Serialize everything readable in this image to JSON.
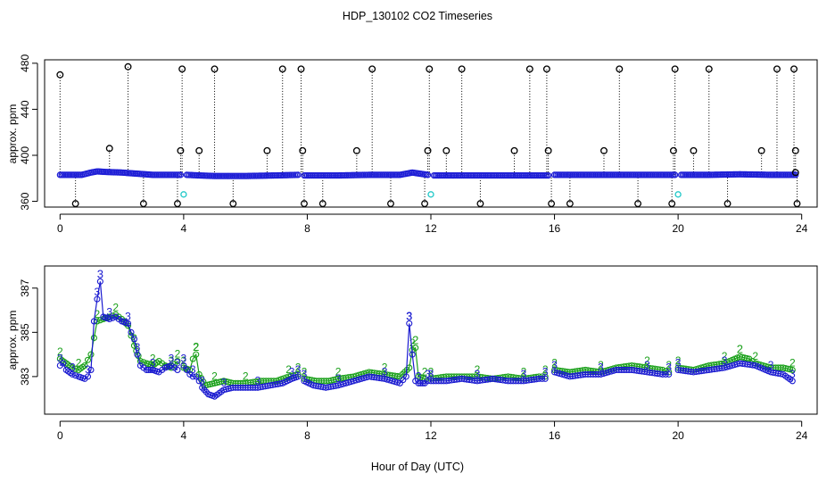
{
  "title": "HDP_130102  CO2 Timeseries",
  "xlabel": "Hour of Day (UTC)",
  "chart_data": [
    {
      "type": "scatter",
      "panel": "top",
      "ylabel": "approx. ppm",
      "xlim": [
        -0.5,
        24.5
      ],
      "ylim": [
        355,
        483
      ],
      "x_ticks": [
        0,
        4,
        8,
        12,
        16,
        20,
        24
      ],
      "y_ticks": [
        360,
        400,
        440,
        480
      ],
      "baseline_series": {
        "color": "#1f1fd6",
        "segments": [
          {
            "x": [
              0.0,
              0.7,
              1.0,
              1.2,
              1.5,
              2.0,
              2.5,
              3.0,
              3.5,
              3.9
            ],
            "y": [
              383,
              383,
              385,
              386,
              385.5,
              385,
              384,
              383,
              383,
              383
            ]
          },
          {
            "x": [
              4.1,
              4.5,
              5.0,
              6.0,
              7.0,
              7.7
            ],
            "y": [
              383,
              382.5,
              382,
              382,
              382.5,
              383
            ]
          },
          {
            "x": [
              7.9,
              9.0,
              10.0,
              11.0,
              11.4,
              11.9
            ],
            "y": [
              382.5,
              382.5,
              383,
              383,
              385,
              383
            ]
          },
          {
            "x": [
              12.1,
              13.0,
              14.0,
              15.0,
              15.8
            ],
            "y": [
              382.5,
              382.5,
              382.5,
              382.5,
              382.5
            ]
          },
          {
            "x": [
              16.0,
              17.0,
              18.0,
              19.0,
              19.9
            ],
            "y": [
              383,
              383,
              383,
              383,
              383
            ]
          },
          {
            "x": [
              20.1,
              21.0,
              22.0,
              23.0,
              23.8
            ],
            "y": [
              383,
              383,
              383.5,
              383,
              383
            ]
          }
        ]
      },
      "spikes": {
        "color": "#000000",
        "points": [
          {
            "x": 0.0,
            "y": 470
          },
          {
            "x": 0.5,
            "y": 358
          },
          {
            "x": 1.6,
            "y": 406
          },
          {
            "x": 2.2,
            "y": 477
          },
          {
            "x": 2.7,
            "y": 358
          },
          {
            "x": 3.8,
            "y": 358
          },
          {
            "x": 3.9,
            "y": 404
          },
          {
            "x": 3.95,
            "y": 475
          },
          {
            "x": 4.5,
            "y": 404
          },
          {
            "x": 5.0,
            "y": 475
          },
          {
            "x": 5.6,
            "y": 358
          },
          {
            "x": 6.7,
            "y": 404
          },
          {
            "x": 7.2,
            "y": 475
          },
          {
            "x": 7.8,
            "y": 475
          },
          {
            "x": 7.85,
            "y": 404
          },
          {
            "x": 7.9,
            "y": 358
          },
          {
            "x": 8.5,
            "y": 358
          },
          {
            "x": 9.6,
            "y": 404
          },
          {
            "x": 10.1,
            "y": 475
          },
          {
            "x": 10.7,
            "y": 358
          },
          {
            "x": 11.8,
            "y": 358
          },
          {
            "x": 11.9,
            "y": 404
          },
          {
            "x": 11.95,
            "y": 475
          },
          {
            "x": 12.5,
            "y": 404
          },
          {
            "x": 13.0,
            "y": 475
          },
          {
            "x": 13.6,
            "y": 358
          },
          {
            "x": 14.7,
            "y": 404
          },
          {
            "x": 15.2,
            "y": 475
          },
          {
            "x": 15.75,
            "y": 475
          },
          {
            "x": 15.8,
            "y": 404
          },
          {
            "x": 15.9,
            "y": 358
          },
          {
            "x": 16.5,
            "y": 358
          },
          {
            "x": 17.6,
            "y": 404
          },
          {
            "x": 18.1,
            "y": 475
          },
          {
            "x": 18.7,
            "y": 358
          },
          {
            "x": 19.8,
            "y": 358
          },
          {
            "x": 19.85,
            "y": 404
          },
          {
            "x": 19.9,
            "y": 475
          },
          {
            "x": 20.5,
            "y": 404
          },
          {
            "x": 21.0,
            "y": 475
          },
          {
            "x": 21.6,
            "y": 358
          },
          {
            "x": 22.7,
            "y": 404
          },
          {
            "x": 23.2,
            "y": 475
          },
          {
            "x": 23.75,
            "y": 475
          },
          {
            "x": 23.8,
            "y": 404
          },
          {
            "x": 23.85,
            "y": 358
          },
          {
            "x": 23.8,
            "y": 385
          }
        ]
      },
      "cyan_points": {
        "color": "#20c8c8",
        "points": [
          {
            "x": 4.0,
            "y": 366
          },
          {
            "x": 12.0,
            "y": 366
          },
          {
            "x": 20.0,
            "y": 366
          }
        ]
      }
    },
    {
      "type": "line",
      "panel": "bottom",
      "ylabel": "approx. ppm",
      "xlim": [
        -0.5,
        24.5
      ],
      "ylim": [
        381.3,
        388.0
      ],
      "x_ticks": [
        0,
        4,
        8,
        12,
        16,
        20,
        24
      ],
      "y_ticks": [
        383,
        385,
        387
      ],
      "series": [
        {
          "marker": "3",
          "color": "#1a1ad0",
          "segments": [
            {
              "x": [
                0.0,
                0.1,
                0.2,
                0.4,
                0.6,
                0.8,
                0.9,
                1.0,
                1.1,
                1.2,
                1.3,
                1.4,
                1.6,
                1.8,
                2.0,
                2.2,
                2.3,
                2.4,
                2.5,
                2.6,
                2.8,
                3.0,
                3.2,
                3.4,
                3.6,
                3.8
              ],
              "y": [
                383.5,
                383.6,
                383.3,
                383.1,
                383.0,
                382.9,
                383.0,
                383.3,
                385.5,
                386.5,
                387.3,
                385.7,
                385.6,
                385.7,
                385.5,
                385.4,
                385.0,
                384.7,
                384.0,
                383.5,
                383.3,
                383.3,
                383.2,
                383.4,
                383.5,
                383.3
              ]
            },
            {
              "x": [
                4.0,
                4.1,
                4.2,
                4.3,
                4.4,
                4.5,
                4.6,
                4.8,
                5.0,
                5.3,
                5.6,
                6.0,
                6.4,
                6.8,
                7.2,
                7.5,
                7.7
              ],
              "y": [
                383.5,
                383.3,
                383.1,
                383.0,
                383.0,
                382.8,
                382.5,
                382.2,
                382.1,
                382.4,
                382.5,
                382.5,
                382.5,
                382.6,
                382.7,
                382.9,
                383.0
              ]
            },
            {
              "x": [
                7.9,
                8.2,
                8.6,
                9.0,
                9.5,
                10.0,
                10.5,
                11.0,
                11.2,
                11.3,
                11.4,
                11.5,
                11.6,
                11.8,
                11.9
              ],
              "y": [
                382.8,
                382.6,
                382.5,
                382.6,
                382.8,
                383.0,
                382.9,
                382.7,
                383.0,
                385.4,
                384.0,
                382.8,
                382.7,
                382.7,
                382.8
              ]
            },
            {
              "x": [
                12.0,
                12.5,
                13.0,
                13.5,
                14.0,
                14.5,
                15.0,
                15.5,
                15.7
              ],
              "y": [
                382.8,
                382.8,
                382.9,
                382.8,
                382.9,
                382.8,
                382.8,
                382.9,
                382.9
              ]
            },
            {
              "x": [
                16.0,
                16.5,
                17.0,
                17.5,
                18.0,
                18.5,
                19.0,
                19.5,
                19.7
              ],
              "y": [
                383.2,
                383.0,
                383.1,
                383.1,
                383.3,
                383.3,
                383.2,
                383.1,
                383.1
              ]
            },
            {
              "x": [
                20.0,
                20.5,
                21.0,
                21.5,
                22.0,
                22.5,
                23.0,
                23.4,
                23.7
              ],
              "y": [
                383.3,
                383.2,
                383.3,
                383.4,
                383.6,
                383.5,
                383.2,
                383.1,
                382.8
              ]
            }
          ]
        },
        {
          "marker": "2",
          "color": "#1aa01a",
          "segments": [
            {
              "x": [
                0.0,
                0.2,
                0.4,
                0.6,
                0.8,
                1.0,
                1.2,
                1.4,
                1.6,
                1.8,
                2.0,
                2.2,
                2.4,
                2.6,
                2.8,
                3.0,
                3.2,
                3.4,
                3.6,
                3.8
              ],
              "y": [
                383.8,
                383.6,
                383.4,
                383.3,
                383.5,
                384.0,
                385.5,
                385.6,
                385.7,
                385.8,
                385.6,
                385.3,
                384.4,
                383.7,
                383.6,
                383.5,
                383.7,
                383.5,
                383.4,
                383.7
              ]
            },
            {
              "x": [
                4.0,
                4.2,
                4.3,
                4.4,
                4.5,
                4.7,
                5.0,
                5.3,
                5.6,
                6.0,
                6.5,
                7.0,
                7.4,
                7.7
              ],
              "y": [
                383.4,
                383.3,
                383.8,
                384.0,
                383.1,
                382.6,
                382.7,
                382.8,
                382.7,
                382.7,
                382.8,
                382.8,
                383.0,
                383.1
              ]
            },
            {
              "x": [
                7.9,
                8.3,
                8.7,
                9.0,
                9.5,
                10.0,
                10.5,
                11.0,
                11.3,
                11.4,
                11.5,
                11.6,
                11.8
              ],
              "y": [
                382.9,
                382.8,
                382.8,
                382.9,
                383.0,
                383.2,
                383.1,
                383.0,
                383.4,
                384.2,
                384.3,
                383.0,
                382.9
              ]
            },
            {
              "x": [
                12.0,
                12.5,
                13.0,
                13.5,
                14.0,
                14.5,
                15.0,
                15.5,
                15.7
              ],
              "y": [
                382.9,
                383.0,
                383.0,
                383.0,
                382.9,
                383.0,
                382.9,
                383.0,
                383.0
              ]
            },
            {
              "x": [
                16.0,
                16.5,
                17.0,
                17.5,
                18.0,
                18.5,
                19.0,
                19.5,
                19.7
              ],
              "y": [
                383.3,
                383.2,
                383.3,
                383.2,
                383.4,
                383.5,
                383.4,
                383.3,
                383.2
              ]
            },
            {
              "x": [
                20.0,
                20.5,
                21.0,
                21.5,
                22.0,
                22.3,
                22.5,
                23.0,
                23.4,
                23.7
              ],
              "y": [
                383.4,
                383.3,
                383.5,
                383.6,
                383.9,
                383.8,
                383.6,
                383.4,
                383.4,
                383.3
              ]
            }
          ]
        }
      ]
    }
  ]
}
